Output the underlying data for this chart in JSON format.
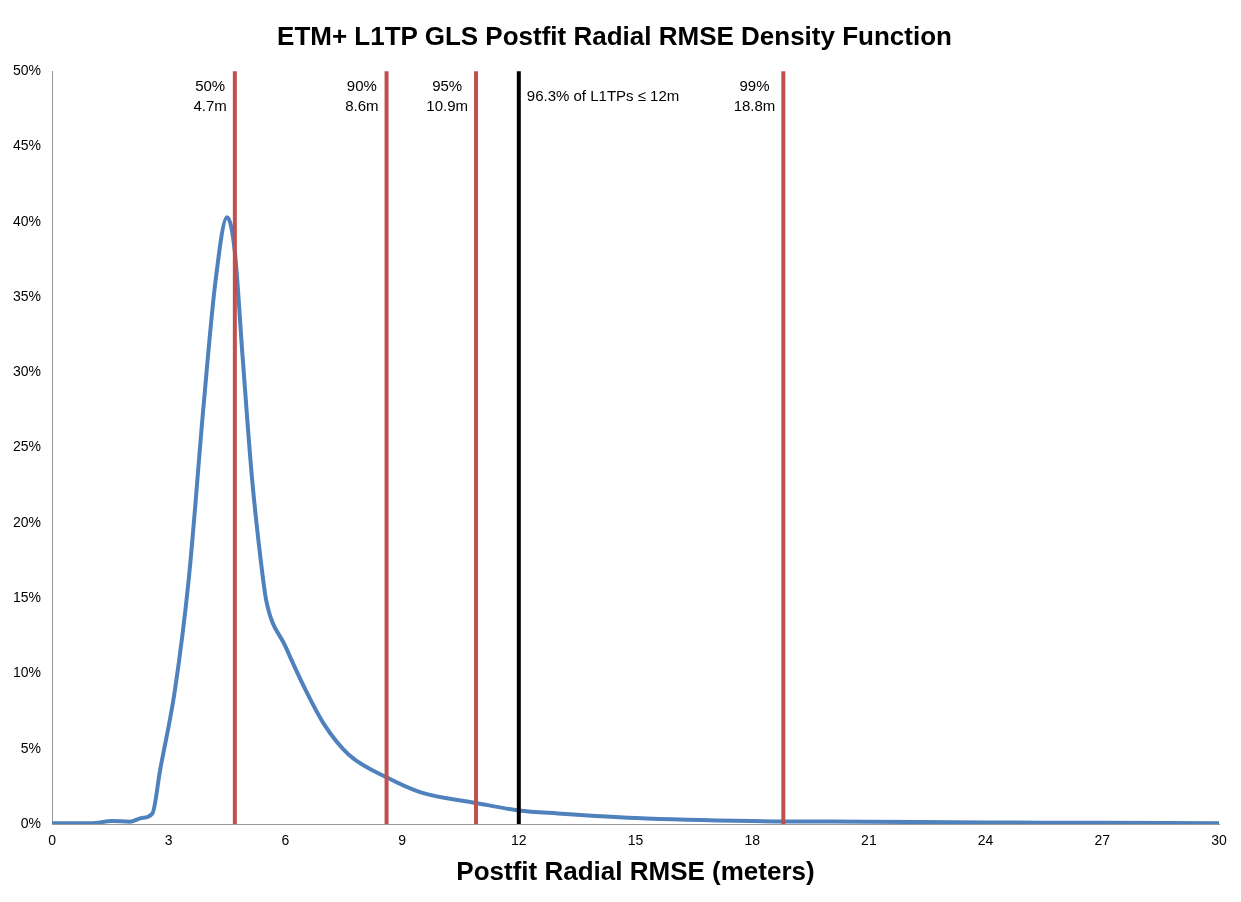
{
  "chart_data": {
    "type": "line",
    "title": "ETM+ L1TP GLS Postfit Radial RMSE Density Function",
    "xlabel": "Postfit Radial RMSE (meters)",
    "x": [
      0,
      0.5,
      1,
      1.54,
      2,
      2.3,
      2.58,
      2.78,
      3.16,
      3.52,
      3.9,
      4.2,
      4.5,
      4.7,
      4.9,
      5.14,
      5.39,
      5.51,
      6,
      6.5,
      7,
      7.63,
      8.6,
      9.48,
      10.9,
      12,
      13,
      15,
      18,
      21,
      24,
      27,
      30
    ],
    "series": [
      {
        "color": "#4f81bd",
        "values": [
          0.05,
          0.05,
          0.05,
          0.2,
          0.15,
          0.4,
          0.7,
          3.6,
          8.9,
          16.4,
          27.9,
          36,
          40.3,
          38,
          31,
          23,
          17,
          14.8,
          11.8,
          9,
          6.6,
          4.6,
          3.1,
          2.1,
          1.4,
          0.9,
          0.7,
          0.4,
          0.2,
          0.15,
          0.1,
          0.08,
          0.05
        ]
      }
    ],
    "xlim": [
      0,
      30
    ],
    "xticks": [
      0,
      3,
      6,
      9,
      12,
      15,
      18,
      21,
      24,
      27,
      30
    ],
    "ylim": [
      0,
      50
    ],
    "yticks": [
      {
        "value": 0,
        "label": "0%"
      },
      {
        "value": 5,
        "label": "5%"
      },
      {
        "value": 10,
        "label": "10%"
      },
      {
        "value": 15,
        "label": "15%"
      },
      {
        "value": 20,
        "label": "20%"
      },
      {
        "value": 25,
        "label": "25%"
      },
      {
        "value": 30,
        "label": "30%"
      },
      {
        "value": 35,
        "label": "35%"
      },
      {
        "value": 40,
        "label": "40%"
      },
      {
        "value": 45,
        "label": "45%"
      },
      {
        "value": 50,
        "label": "50%"
      }
    ],
    "ref_lines": [
      {
        "axis": "x",
        "value": 4.7,
        "label": "50%\n4.7m",
        "color": "#c0504d"
      },
      {
        "axis": "x",
        "value": 8.6,
        "label": "90%\n8.6m",
        "color": "#c0504d"
      },
      {
        "axis": "x",
        "value": 10.9,
        "label": "95%\n10.9m",
        "color": "#c0504d"
      },
      {
        "axis": "x",
        "value": 12,
        "label": "96.3% of L1TPs ≤ 12m",
        "color": "#000000"
      },
      {
        "axis": "x",
        "value": 18.8,
        "label": "99%\n18.8m",
        "color": "#c0504d"
      }
    ],
    "grid": false,
    "legend": false,
    "marker": "none",
    "line_style": "solid"
  }
}
